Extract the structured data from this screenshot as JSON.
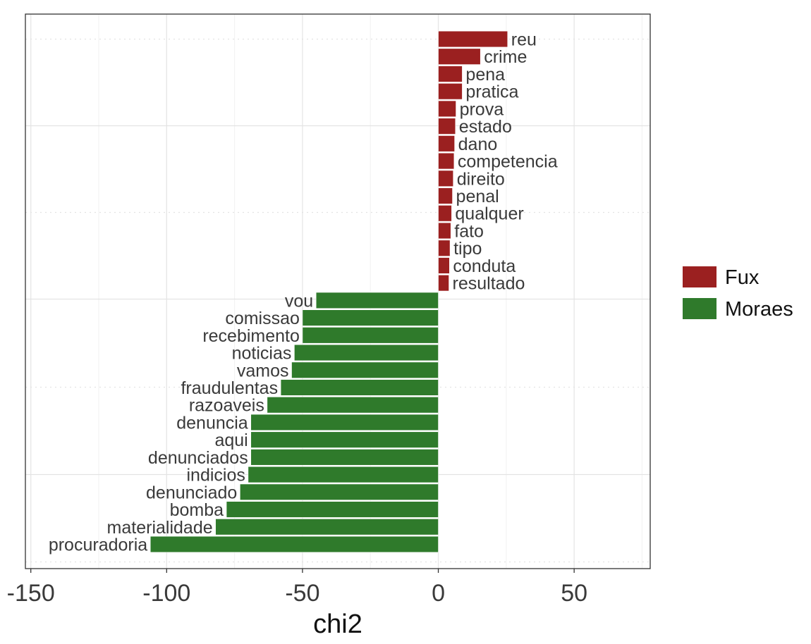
{
  "chart_data": {
    "type": "bar",
    "orientation": "horizontal",
    "xlabel": "chi2",
    "ylabel": "",
    "xlim": [
      -152,
      78
    ],
    "xticks": [
      -150,
      -100,
      -50,
      0,
      50
    ],
    "grid": true,
    "legend_position": "right",
    "colors": {
      "Fux": "#9b2020",
      "Moraes": "#2f7a2b"
    },
    "categories": [
      "reu",
      "crime",
      "pena",
      "pratica",
      "prova",
      "estado",
      "dano",
      "competencia",
      "direito",
      "penal",
      "qualquer",
      "fato",
      "tipo",
      "conduta",
      "resultado",
      "vou",
      "comissao",
      "recebimento",
      "noticias",
      "vamos",
      "fraudulentas",
      "razoaveis",
      "denuncia",
      "aqui",
      "denunciados",
      "indicios",
      "denunciado",
      "bomba",
      "materialidade",
      "procuradoria"
    ],
    "values": [
      25.5,
      15.5,
      8.8,
      8.8,
      6.5,
      6.3,
      6.0,
      5.8,
      5.5,
      5.2,
      4.9,
      4.6,
      4.3,
      4.1,
      3.9,
      -45,
      -50,
      -50,
      -53,
      -54,
      -58,
      -63,
      -69,
      -69,
      -69,
      -70,
      -73,
      -78,
      -82,
      -106
    ],
    "groups": [
      "Fux",
      "Fux",
      "Fux",
      "Fux",
      "Fux",
      "Fux",
      "Fux",
      "Fux",
      "Fux",
      "Fux",
      "Fux",
      "Fux",
      "Fux",
      "Fux",
      "Fux",
      "Moraes",
      "Moraes",
      "Moraes",
      "Moraes",
      "Moraes",
      "Moraes",
      "Moraes",
      "Moraes",
      "Moraes",
      "Moraes",
      "Moraes",
      "Moraes",
      "Moraes",
      "Moraes",
      "Moraes"
    ],
    "legend": [
      "Fux",
      "Moraes"
    ]
  }
}
